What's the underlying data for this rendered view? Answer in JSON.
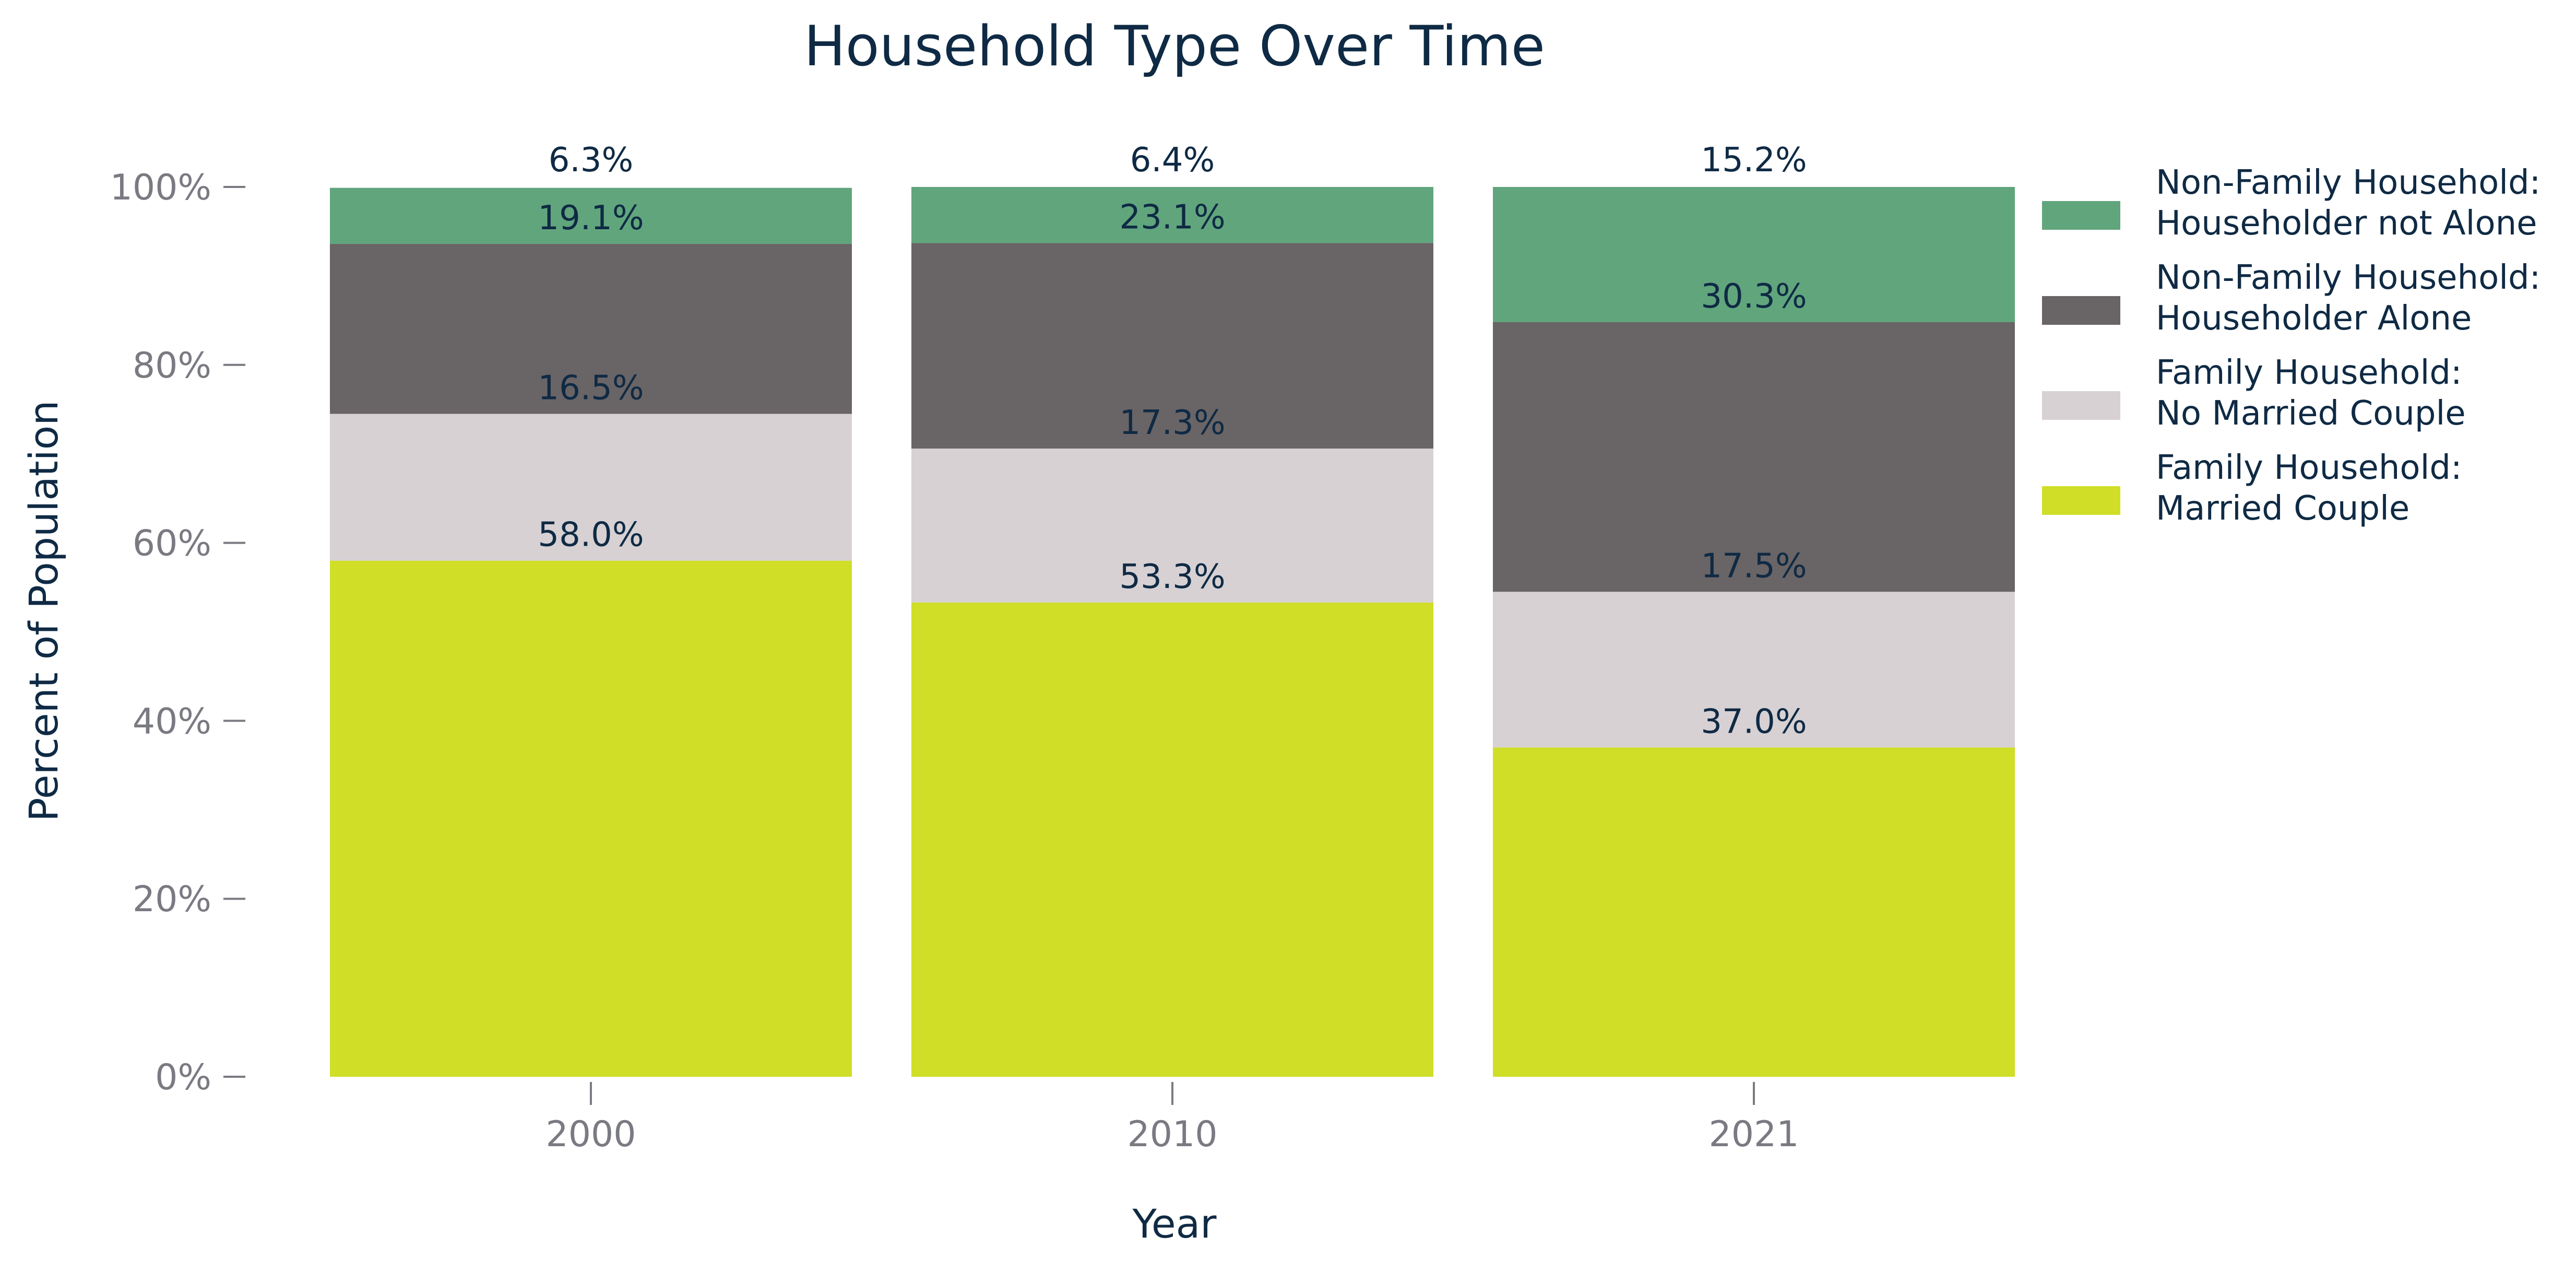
{
  "chart_data": {
    "type": "bar",
    "stacked": true,
    "title": "Household Type Over Time",
    "xlabel": "Year",
    "ylabel": "Percent of Population",
    "ylim": [
      0,
      100
    ],
    "y_ticks": [
      "0%",
      "20%",
      "40%",
      "60%",
      "80%",
      "100%"
    ],
    "categories": [
      "2000",
      "2010",
      "2021"
    ],
    "legend_position": "right",
    "series": [
      {
        "name": "Family Household: Married Couple",
        "legend_lines": [
          "Family Household:",
          "Married Couple"
        ],
        "color": "#d0de27",
        "values": [
          58.0,
          53.3,
          37.0
        ],
        "labels": [
          "58.0%",
          "53.3%",
          "37.0%"
        ]
      },
      {
        "name": "Family Household: No Married Couple",
        "legend_lines": [
          "Family Household:",
          "No Married Couple"
        ],
        "color": "#d7d1d4",
        "values": [
          16.5,
          17.3,
          17.5
        ],
        "labels": [
          "16.5%",
          "17.3%",
          "17.5%"
        ]
      },
      {
        "name": "Non-Family Household: Householder Alone",
        "legend_lines": [
          "Non-Family Household:",
          "Householder Alone"
        ],
        "color": "#696466",
        "values": [
          19.1,
          23.1,
          30.3
        ],
        "labels": [
          "19.1%",
          "23.1%",
          "30.3%"
        ]
      },
      {
        "name": "Non-Family Household: Householder not Alone",
        "legend_lines": [
          "Non-Family Household:",
          "Householder not Alone"
        ],
        "color": "#61a57d",
        "values": [
          6.3,
          6.4,
          15.2
        ],
        "labels": [
          "6.3%",
          "6.4%",
          "15.2%"
        ]
      }
    ]
  }
}
